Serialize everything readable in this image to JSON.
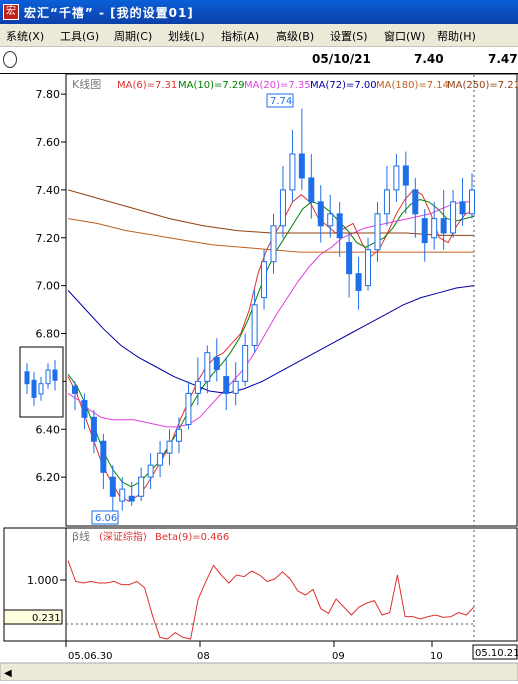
{
  "window": {
    "title": "宏汇“千禧” - [我的设置01]",
    "app_icon_glyph": "宏"
  },
  "menu": {
    "items": [
      "系统(X)",
      "工具(G)",
      "周期(C)",
      "划线(L)",
      "指标(A)",
      "高级(B)",
      "设置(S)",
      "窗口(W)",
      "帮助(H)"
    ]
  },
  "quote": {
    "date": "05/10/21",
    "price1": "7.40",
    "price2": "7.47"
  },
  "colors": {
    "ma6": "#e03030",
    "ma10": "#008000",
    "ma20": "#e040e0",
    "ma72": "#0000a0",
    "ma180": "#c06020",
    "ma250": "#904010",
    "candle": "#1e6ee8",
    "beta": "#e03030"
  },
  "legend": {
    "kline_label": "K线图",
    "ma6": "MA(6)=7.31",
    "ma10": "MA(10)=7.29",
    "ma20": "MA(20)=7.35",
    "ma72": "MA(72)=7.00",
    "ma180": "MA(180)=7.14",
    "ma250": "MA(250)=7.21"
  },
  "beta_legend": {
    "label": "β线",
    "index": "(深证综指)",
    "value": "Beta(9)=0.466"
  },
  "annotations": {
    "high_label": "7.74",
    "low_label": "6.06"
  },
  "beta_axis": {
    "tick": "1.000",
    "current": "0.231"
  },
  "x_axis": {
    "labels": [
      "05.06.30",
      "08",
      "09",
      "10"
    ],
    "current_date": "05.10.21"
  },
  "chart_data": {
    "type": "candlestick",
    "ylim": [
      6.0,
      7.88
    ],
    "yticks": [
      "7.80",
      "7.60",
      "7.40",
      "7.20",
      "7.00",
      "6.80",
      "6.60",
      "6.40",
      "6.20"
    ],
    "ma_series": [
      {
        "name": "MA(6)",
        "values": [
          6.62,
          6.55,
          6.45,
          6.35,
          6.25,
          6.18,
          6.12,
          6.1,
          6.12,
          6.16,
          6.22,
          6.28,
          6.35,
          6.44,
          6.52,
          6.6,
          6.66,
          6.7,
          6.72,
          6.76,
          6.8,
          6.9,
          7.05,
          7.15,
          7.22,
          7.28,
          7.35,
          7.38,
          7.35,
          7.28,
          7.25,
          7.22,
          7.24,
          7.26,
          7.18,
          7.12,
          7.15,
          7.22,
          7.3,
          7.36,
          7.4,
          7.38,
          7.3,
          7.2,
          7.18,
          7.25,
          7.3,
          7.31
        ]
      },
      {
        "name": "MA(10)",
        "values": [
          6.63,
          6.58,
          6.5,
          6.4,
          6.3,
          6.23,
          6.18,
          6.16,
          6.18,
          6.22,
          6.26,
          6.32,
          6.38,
          6.45,
          6.52,
          6.58,
          6.63,
          6.67,
          6.72,
          6.78,
          6.86,
          6.96,
          7.06,
          7.14,
          7.2,
          7.26,
          7.32,
          7.35,
          7.34,
          7.31,
          7.27,
          7.23,
          7.18,
          7.16,
          7.18,
          7.2,
          7.24,
          7.3,
          7.34,
          7.36,
          7.35,
          7.32,
          7.28,
          7.27,
          7.28,
          7.29
        ]
      },
      {
        "name": "MA(20)",
        "values": [
          6.55,
          6.52,
          6.48,
          6.45,
          6.44,
          6.44,
          6.44,
          6.43,
          6.42,
          6.41,
          6.41,
          6.42,
          6.45,
          6.5,
          6.55,
          6.6,
          6.65,
          6.72,
          6.8,
          6.88,
          6.95,
          7.02,
          7.08,
          7.13,
          7.16,
          7.2,
          7.22,
          7.24,
          7.25,
          7.26,
          7.27,
          7.28,
          7.29,
          7.3,
          7.32,
          7.34,
          7.35,
          7.35
        ]
      },
      {
        "name": "MA(72)",
        "values": [
          6.98,
          6.9,
          6.82,
          6.75,
          6.7,
          6.66,
          6.62,
          6.59,
          6.56,
          6.55,
          6.57,
          6.6,
          6.64,
          6.68,
          6.72,
          6.76,
          6.8,
          6.84,
          6.88,
          6.92,
          6.95,
          6.97,
          6.99,
          7.0
        ]
      },
      {
        "name": "MA(180)",
        "values": [
          7.28,
          7.26,
          7.23,
          7.21,
          7.19,
          7.17,
          7.16,
          7.15,
          7.14,
          7.14,
          7.14,
          7.14,
          7.14,
          7.14,
          7.14
        ]
      },
      {
        "name": "MA(250)",
        "values": [
          7.4,
          7.36,
          7.32,
          7.28,
          7.25,
          7.23,
          7.22,
          7.22,
          7.22,
          7.22,
          7.22,
          7.21,
          7.21
        ]
      }
    ],
    "candles": [
      [
        6.58,
        6.55,
        6.6,
        6.48
      ],
      [
        6.52,
        6.45,
        6.55,
        6.4
      ],
      [
        6.45,
        6.35,
        6.48,
        6.3
      ],
      [
        6.35,
        6.22,
        6.38,
        6.15
      ],
      [
        6.2,
        6.12,
        6.25,
        6.06
      ],
      [
        6.1,
        6.15,
        6.2,
        6.06
      ],
      [
        6.12,
        6.1,
        6.18,
        6.08
      ],
      [
        6.12,
        6.2,
        6.24,
        6.1
      ],
      [
        6.2,
        6.25,
        6.3,
        6.15
      ],
      [
        6.25,
        6.3,
        6.35,
        6.2
      ],
      [
        6.3,
        6.35,
        6.4,
        6.25
      ],
      [
        6.35,
        6.4,
        6.45,
        6.3
      ],
      [
        6.42,
        6.55,
        6.6,
        6.4
      ],
      [
        6.55,
        6.6,
        6.7,
        6.5
      ],
      [
        6.6,
        6.72,
        6.75,
        6.55
      ],
      [
        6.7,
        6.65,
        6.78,
        6.6
      ],
      [
        6.62,
        6.55,
        6.7,
        6.48
      ],
      [
        6.55,
        6.6,
        6.68,
        6.5
      ],
      [
        6.6,
        6.75,
        6.8,
        6.58
      ],
      [
        6.75,
        6.92,
        6.98,
        6.72
      ],
      [
        6.95,
        7.1,
        7.15,
        6.9
      ],
      [
        7.1,
        7.25,
        7.3,
        7.05
      ],
      [
        7.25,
        7.4,
        7.5,
        7.2
      ],
      [
        7.4,
        7.55,
        7.65,
        7.35
      ],
      [
        7.55,
        7.45,
        7.74,
        7.4
      ],
      [
        7.45,
        7.35,
        7.55,
        7.28
      ],
      [
        7.35,
        7.25,
        7.42,
        7.18
      ],
      [
        7.25,
        7.3,
        7.38,
        7.2
      ],
      [
        7.3,
        7.2,
        7.35,
        7.12
      ],
      [
        7.18,
        7.05,
        7.22,
        6.95
      ],
      [
        7.05,
        6.98,
        7.12,
        6.9
      ],
      [
        7.0,
        7.15,
        7.2,
        6.98
      ],
      [
        7.15,
        7.3,
        7.35,
        7.1
      ],
      [
        7.3,
        7.4,
        7.5,
        7.25
      ],
      [
        7.4,
        7.5,
        7.55,
        7.35
      ],
      [
        7.5,
        7.42,
        7.56,
        7.3
      ],
      [
        7.4,
        7.3,
        7.45,
        7.2
      ],
      [
        7.28,
        7.18,
        7.32,
        7.1
      ],
      [
        7.2,
        7.28,
        7.35,
        7.15
      ],
      [
        7.28,
        7.22,
        7.4,
        7.15
      ],
      [
        7.22,
        7.35,
        7.4,
        7.2
      ],
      [
        7.35,
        7.3,
        7.45,
        7.25
      ],
      [
        7.3,
        7.4,
        7.47,
        7.28
      ]
    ],
    "beta_series": {
      "name": "Beta(9)",
      "ylim": [
        0.0,
        1.2
      ],
      "values": [
        0.98,
        0.72,
        0.7,
        0.72,
        0.7,
        0.7,
        0.72,
        0.68,
        0.68,
        0.72,
        0.64,
        0.3,
        0.02,
        0.0,
        0.08,
        0.02,
        0.0,
        0.5,
        0.72,
        0.92,
        0.8,
        0.7,
        0.8,
        0.78,
        0.85,
        0.8,
        0.72,
        0.75,
        0.84,
        0.75,
        0.6,
        0.55,
        0.62,
        0.38,
        0.32,
        0.5,
        0.4,
        0.3,
        0.4,
        0.45,
        0.48,
        0.3,
        0.33,
        0.8,
        0.28,
        0.28,
        0.25,
        0.28,
        0.3,
        0.27,
        0.28,
        0.33,
        0.3,
        0.4
      ]
    }
  }
}
